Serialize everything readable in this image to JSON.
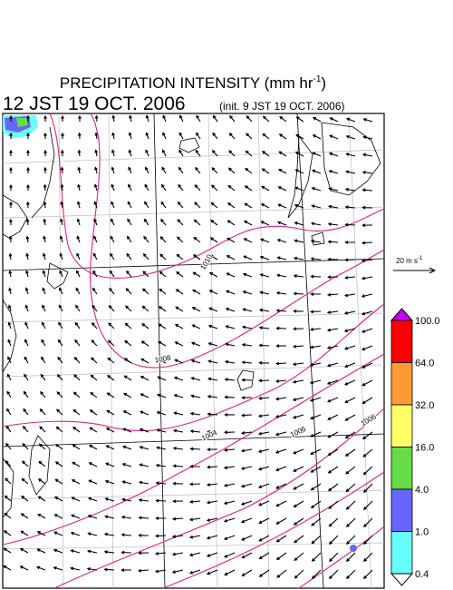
{
  "header": {
    "title": "PRECIPITATION INTENSITY (mm hr",
    "title_exponent": "-1",
    "title_close": ")",
    "valid_time": "12 JST 19 OCT. 2006",
    "init_time": "(init. 9 JST 19 OCT. 2006)"
  },
  "wind_scale": {
    "label": "20 m s",
    "exponent": "-1"
  },
  "colorbar": {
    "over_color": "#c000ff",
    "under_color": "#ffffff",
    "segments": [
      {
        "color": "#ff0000"
      },
      {
        "color": "#ff9933"
      },
      {
        "color": "#ffff66"
      },
      {
        "color": "#66dd44"
      },
      {
        "color": "#6666ff"
      },
      {
        "color": "#66ffff"
      }
    ],
    "labels": [
      "100.0",
      "64.0",
      "32.0",
      "16.0",
      "4.0",
      "1.0",
      "0.4"
    ]
  },
  "contour_labels": [
    "1010",
    "1008",
    "1004",
    "1006",
    "1006"
  ]
}
